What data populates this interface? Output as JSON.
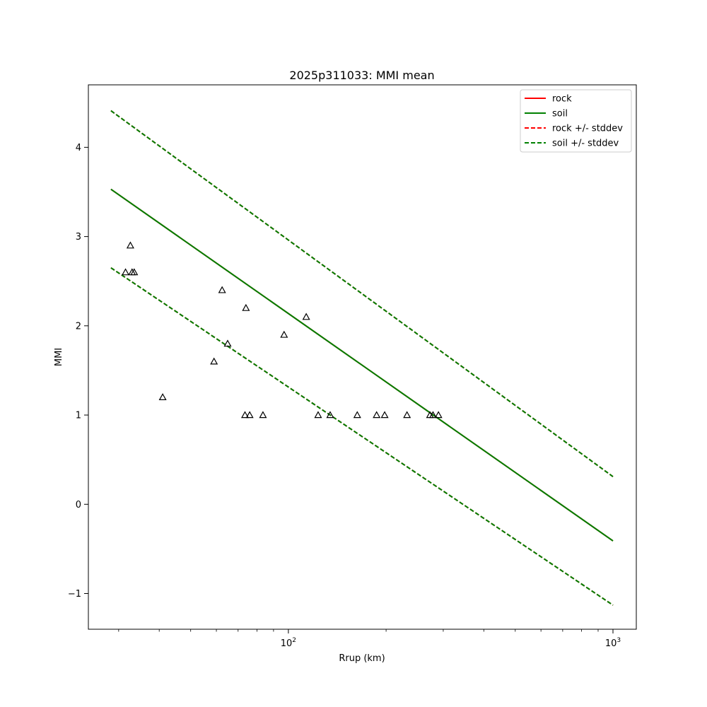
{
  "chart_data": {
    "type": "line",
    "title": "2025p311033: MMI mean",
    "xlabel": "Rrup (km)",
    "ylabel": "MMI",
    "xscale": "log",
    "xlim": [
      24.2,
      1180
    ],
    "ylim": [
      -1.4,
      4.7
    ],
    "xticks": [
      {
        "value": 100,
        "base": "10",
        "exp": "2"
      },
      {
        "value": 1000,
        "base": "10",
        "exp": "3"
      }
    ],
    "yticks": [
      {
        "value": -1,
        "label": "−1"
      },
      {
        "value": 0,
        "label": "0"
      },
      {
        "value": 1,
        "label": "1"
      },
      {
        "value": 2,
        "label": "2"
      },
      {
        "value": 3,
        "label": "3"
      },
      {
        "value": 4,
        "label": "4"
      }
    ],
    "grid": false,
    "legend_position": "upper right",
    "series": [
      {
        "name": "rock",
        "style": "solid",
        "color": "#ff0000",
        "x": [
          28.4,
          1000
        ],
        "y": [
          3.53,
          -0.41
        ]
      },
      {
        "name": "soil",
        "style": "solid",
        "color": "#008000",
        "x": [
          28.4,
          1000
        ],
        "y": [
          3.53,
          -0.41
        ]
      },
      {
        "name": "rock +/- stddev",
        "style": "dashed",
        "color": "#ff0000",
        "x": [
          28.4,
          1000
        ],
        "y": [
          4.41,
          0.31
        ],
        "y_lower": [
          2.65,
          -1.13
        ]
      },
      {
        "name": "soil +/- stddev",
        "style": "dashed",
        "color": "#008000",
        "x": [
          28.4,
          1000
        ],
        "y": [
          4.41,
          0.31
        ],
        "y_lower": [
          2.65,
          -1.13
        ]
      }
    ],
    "observations": {
      "marker": "triangle",
      "points": [
        {
          "x": 31.5,
          "y": 2.6
        },
        {
          "x": 32.6,
          "y": 2.9
        },
        {
          "x": 33.0,
          "y": 2.6
        },
        {
          "x": 33.5,
          "y": 2.6
        },
        {
          "x": 41.0,
          "y": 1.2
        },
        {
          "x": 59.0,
          "y": 1.6
        },
        {
          "x": 62.5,
          "y": 2.4
        },
        {
          "x": 65.0,
          "y": 1.8
        },
        {
          "x": 73.5,
          "y": 1.0
        },
        {
          "x": 74.0,
          "y": 2.2
        },
        {
          "x": 76.0,
          "y": 1.0
        },
        {
          "x": 83.5,
          "y": 1.0
        },
        {
          "x": 97.0,
          "y": 1.9
        },
        {
          "x": 113.5,
          "y": 2.1
        },
        {
          "x": 123.5,
          "y": 1.0
        },
        {
          "x": 134.5,
          "y": 1.0
        },
        {
          "x": 163.0,
          "y": 1.0
        },
        {
          "x": 187.0,
          "y": 1.0
        },
        {
          "x": 198.0,
          "y": 1.0
        },
        {
          "x": 232.0,
          "y": 1.0
        },
        {
          "x": 273.0,
          "y": 1.0
        },
        {
          "x": 279.0,
          "y": 1.0
        },
        {
          "x": 290.0,
          "y": 1.0
        }
      ]
    }
  }
}
